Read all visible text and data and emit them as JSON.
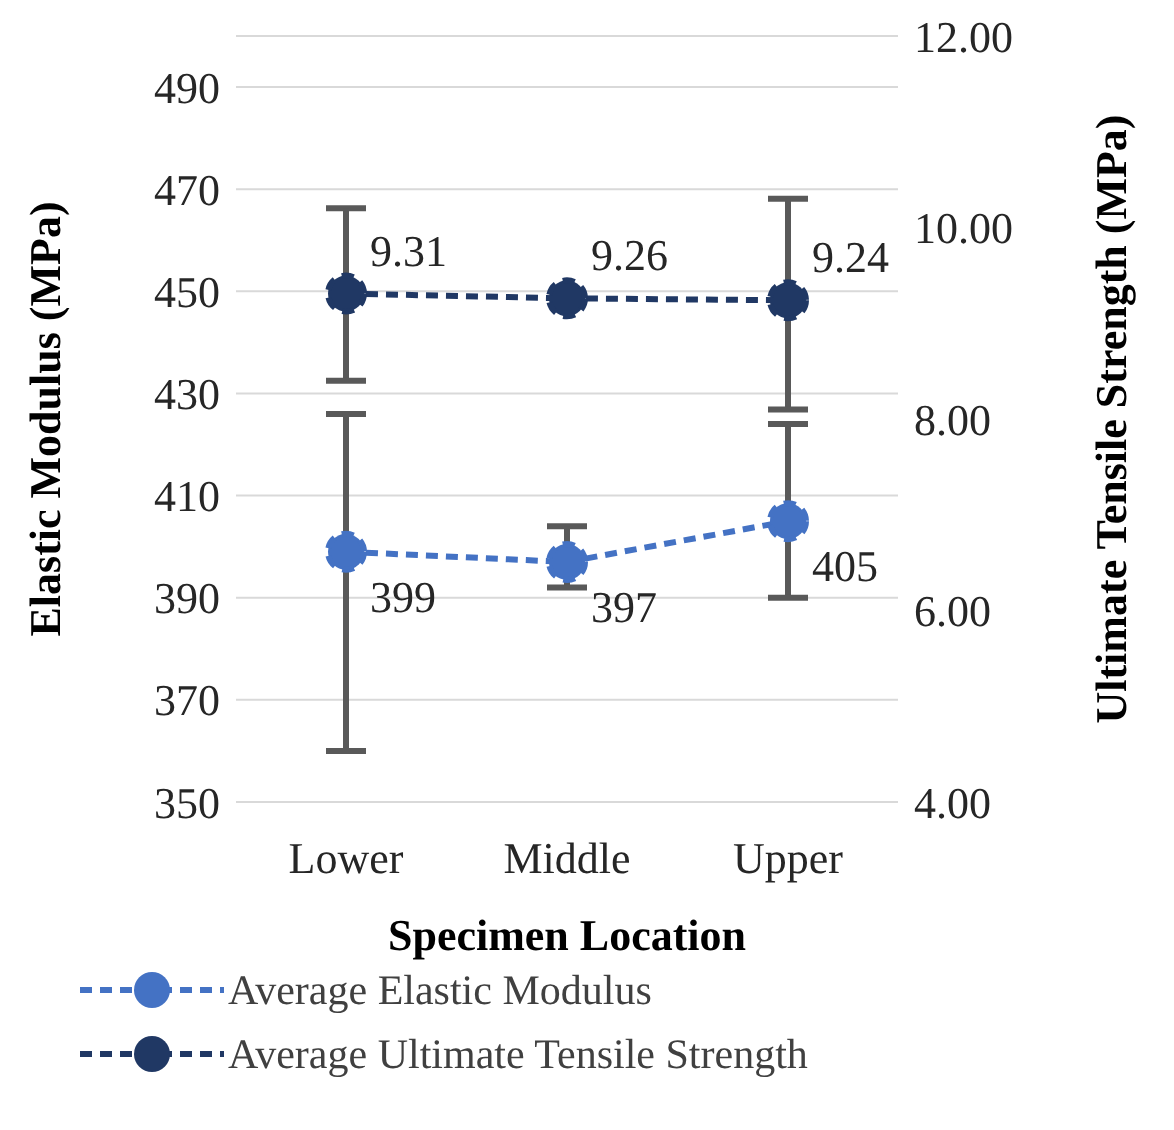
{
  "chart_data": {
    "type": "line",
    "xlabel": "Specimen Location",
    "ylabel": "Elastic Modulus (MPa)",
    "y2label": "Ultimate Tensile Strength (MPa)",
    "categories": [
      "Lower",
      "Middle",
      "Upper"
    ],
    "series": [
      {
        "name": "Average Elastic Modulus",
        "color": "#4472c4",
        "values": [
          399,
          397,
          405
        ],
        "errors": [
          [
            360,
            426
          ],
          [
            392,
            404
          ],
          [
            390,
            424
          ]
        ]
      },
      {
        "name": "Average Ultimate Tensile Strength",
        "color": "#203864",
        "axis": "y2",
        "values": [
          9.31,
          9.26,
          9.24
        ],
        "errors": [
          [
            8.4,
            10.2
          ],
          null,
          [
            8.1,
            10.3
          ]
        ]
      }
    ],
    "ylim": [
      350,
      500
    ],
    "yticks": [
      350,
      370,
      390,
      410,
      430,
      450,
      470,
      490
    ],
    "y2lim": [
      4,
      12
    ],
    "y2ticks": [
      {
        "value": 4,
        "label": "4.00"
      },
      {
        "value": 6,
        "label": "6.00"
      },
      {
        "value": 8,
        "label": "8.00"
      },
      {
        "value": 10,
        "label": "10.00"
      },
      {
        "value": 12,
        "label": "12.00"
      }
    ],
    "grid": "y",
    "legend": "bottom",
    "marker": "circle",
    "line_style": "dashed",
    "data_labels": true
  }
}
